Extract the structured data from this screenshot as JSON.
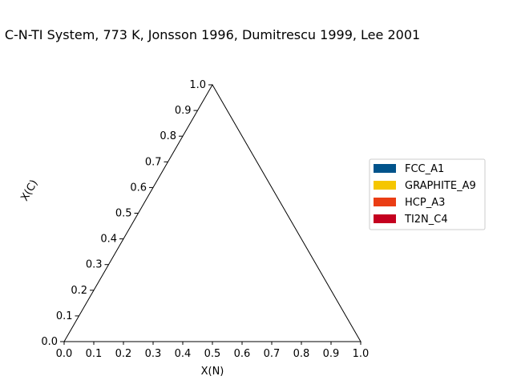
{
  "chart_data": {
    "type": "ternary",
    "title": "C-N-TI System, 773 K, Jonsson 1996, Dumitrescu 1999, Lee 2001",
    "xlabel": "X(N)",
    "ylabel": "X(C)",
    "xlim": [
      0,
      1
    ],
    "ylim": [
      0,
      1
    ],
    "x_ticks": [
      "0.0",
      "0.1",
      "0.2",
      "0.3",
      "0.4",
      "0.5",
      "0.6",
      "0.7",
      "0.8",
      "0.9",
      "1.0"
    ],
    "y_ticks": [
      "0.0",
      "0.1",
      "0.2",
      "0.3",
      "0.4",
      "0.5",
      "0.6",
      "0.7",
      "0.8",
      "0.9",
      "1.0"
    ],
    "grid": false,
    "legend_position": "right",
    "legend": [
      {
        "name": "FCC_A1",
        "color": "#00538b"
      },
      {
        "name": "GRAPHITE_A9",
        "color": "#f5c600"
      },
      {
        "name": "HCP_A3",
        "color": "#ea3d14"
      },
      {
        "name": "TI2N_C4",
        "color": "#c4001f"
      }
    ]
  }
}
